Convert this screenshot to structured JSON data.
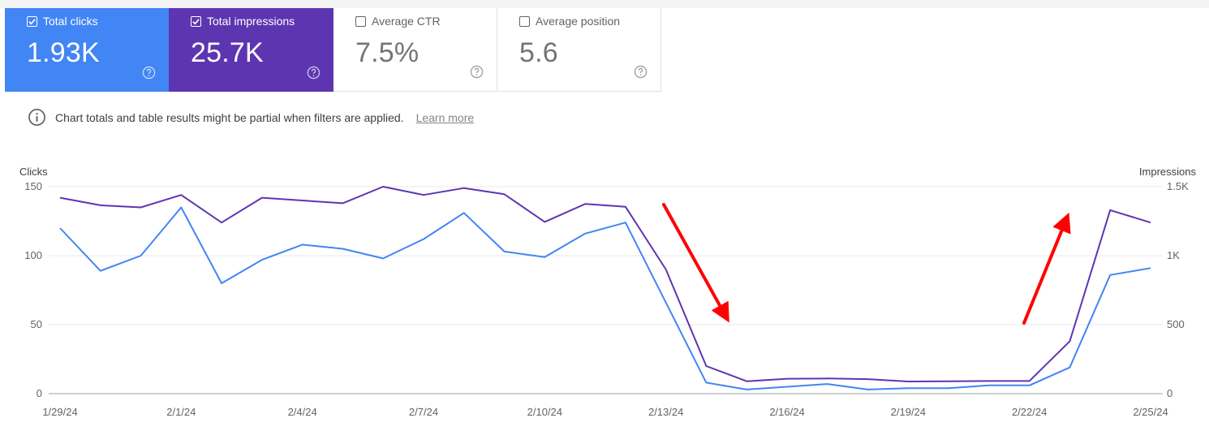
{
  "metrics": [
    {
      "key": "clicks",
      "label": "Total clicks",
      "value": "1.93K",
      "checked": true,
      "color": "#4285f4"
    },
    {
      "key": "impressions",
      "label": "Total impressions",
      "value": "25.7K",
      "checked": true,
      "color": "#5e35b1"
    },
    {
      "key": "ctr",
      "label": "Average CTR",
      "value": "7.5%",
      "checked": false
    },
    {
      "key": "position",
      "label": "Average position",
      "value": "5.6",
      "checked": false
    }
  ],
  "notice": {
    "text": "Chart totals and table results might be partial when filters are applied.",
    "link": "Learn more"
  },
  "chart_data": {
    "type": "line",
    "left_axis_title": "Clicks",
    "right_axis_title": "Impressions",
    "left_ticks": [
      "150",
      "100",
      "50",
      "0"
    ],
    "right_ticks": [
      "1.5K",
      "1K",
      "500",
      "0"
    ],
    "y_left_range": [
      0,
      150
    ],
    "y_right_range": [
      0,
      1500
    ],
    "grid": true,
    "x_tick_labels": [
      "1/29/24",
      "2/1/24",
      "2/4/24",
      "2/7/24",
      "2/10/24",
      "2/13/24",
      "2/16/24",
      "2/19/24",
      "2/22/24",
      "2/25/24"
    ],
    "x": [
      "1/29/24",
      "1/30/24",
      "1/31/24",
      "2/1/24",
      "2/2/24",
      "2/3/24",
      "2/4/24",
      "2/5/24",
      "2/6/24",
      "2/7/24",
      "2/8/24",
      "2/9/24",
      "2/10/24",
      "2/11/24",
      "2/12/24",
      "2/13/24",
      "2/14/24",
      "2/15/24",
      "2/16/24",
      "2/17/24",
      "2/18/24",
      "2/19/24",
      "2/20/24",
      "2/21/24",
      "2/22/24",
      "2/23/24",
      "2/24/24",
      "2/25/24"
    ],
    "series": [
      {
        "name": "Total clicks",
        "axis": "left",
        "color": "#4285f4",
        "values": [
          120,
          89,
          100,
          135,
          80,
          97,
          108,
          105,
          98,
          112,
          131,
          103,
          99,
          116,
          124,
          66,
          8,
          3,
          5,
          7,
          3,
          4,
          4,
          6,
          6,
          19,
          86,
          91
        ]
      },
      {
        "name": "Total impressions",
        "axis": "right",
        "color": "#5e35b1",
        "values": [
          1420,
          1365,
          1350,
          1440,
          1240,
          1420,
          1400,
          1380,
          1500,
          1440,
          1490,
          1445,
          1245,
          1375,
          1355,
          900,
          200,
          90,
          108,
          110,
          105,
          88,
          90,
          92,
          92,
          380,
          1330,
          1240
        ]
      }
    ]
  },
  "annotations": {
    "color": "#ff0000",
    "arrows": [
      "down",
      "up"
    ]
  }
}
